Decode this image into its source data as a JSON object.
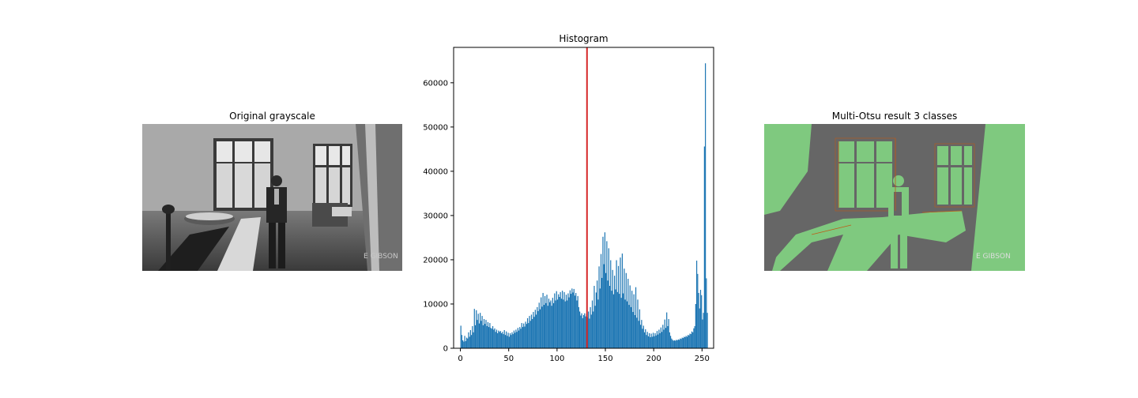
{
  "panels": {
    "left": {
      "title": "Original grayscale",
      "watermark": "E GIBSON"
    },
    "middle": {
      "title": "Histogram"
    },
    "right": {
      "title": "Multi-Otsu result 3 classes",
      "watermark": "E GIBSON"
    }
  },
  "chart_data": [
    {
      "type": "image",
      "title": "Original grayscale",
      "colormap": "gray"
    },
    {
      "type": "bar",
      "title": "Histogram",
      "xlabel": "",
      "ylabel": "",
      "xlim": [
        -7,
        262
      ],
      "ylim": [
        0,
        68000
      ],
      "xticks": [
        0,
        50,
        100,
        150,
        200,
        250
      ],
      "yticks": [
        0,
        10000,
        20000,
        30000,
        40000,
        50000,
        60000
      ],
      "bar_color": "#1f77b4",
      "threshold_lines": [
        {
          "x": 131,
          "color": "#d62728"
        }
      ],
      "bins": [
        [
          0,
          5100
        ],
        [
          1,
          3000
        ],
        [
          2,
          1800
        ],
        [
          3,
          1500
        ],
        [
          4,
          2800
        ],
        [
          5,
          1600
        ],
        [
          6,
          2400
        ],
        [
          7,
          2200
        ],
        [
          8,
          3600
        ],
        [
          9,
          2600
        ],
        [
          10,
          4100
        ],
        [
          11,
          3000
        ],
        [
          12,
          5000
        ],
        [
          13,
          3600
        ],
        [
          14,
          8900
        ],
        [
          15,
          5200
        ],
        [
          16,
          8600
        ],
        [
          17,
          6400
        ],
        [
          18,
          7800
        ],
        [
          19,
          5600
        ],
        [
          20,
          8000
        ],
        [
          21,
          6200
        ],
        [
          22,
          7300
        ],
        [
          23,
          5200
        ],
        [
          24,
          6600
        ],
        [
          25,
          5500
        ],
        [
          26,
          6400
        ],
        [
          27,
          5000
        ],
        [
          28,
          5900
        ],
        [
          29,
          4800
        ],
        [
          30,
          5700
        ],
        [
          31,
          4600
        ],
        [
          32,
          4400
        ],
        [
          33,
          5000
        ],
        [
          34,
          4200
        ],
        [
          35,
          4500
        ],
        [
          36,
          3700
        ],
        [
          37,
          4200
        ],
        [
          38,
          3400
        ],
        [
          39,
          4000
        ],
        [
          40,
          3700
        ],
        [
          41,
          3900
        ],
        [
          42,
          3400
        ],
        [
          43,
          3700
        ],
        [
          44,
          3200
        ],
        [
          45,
          4100
        ],
        [
          46,
          3000
        ],
        [
          47,
          3800
        ],
        [
          48,
          2800
        ],
        [
          49,
          3500
        ],
        [
          50,
          2600
        ],
        [
          51,
          3400
        ],
        [
          52,
          3000
        ],
        [
          53,
          3600
        ],
        [
          54,
          3200
        ],
        [
          55,
          4000
        ],
        [
          56,
          3500
        ],
        [
          57,
          4200
        ],
        [
          58,
          3700
        ],
        [
          59,
          4600
        ],
        [
          60,
          4000
        ],
        [
          61,
          4800
        ],
        [
          62,
          4400
        ],
        [
          63,
          5700
        ],
        [
          64,
          4800
        ],
        [
          65,
          5600
        ],
        [
          66,
          4900
        ],
        [
          67,
          6000
        ],
        [
          68,
          5500
        ],
        [
          69,
          6800
        ],
        [
          70,
          5700
        ],
        [
          71,
          7300
        ],
        [
          72,
          6200
        ],
        [
          73,
          7600
        ],
        [
          74,
          6600
        ],
        [
          75,
          8200
        ],
        [
          76,
          7100
        ],
        [
          77,
          8700
        ],
        [
          78,
          7600
        ],
        [
          79,
          9300
        ],
        [
          80,
          8400
        ],
        [
          81,
          10300
        ],
        [
          82,
          8800
        ],
        [
          83,
          11500
        ],
        [
          84,
          9400
        ],
        [
          85,
          12500
        ],
        [
          86,
          9800
        ],
        [
          87,
          11800
        ],
        [
          88,
          10200
        ],
        [
          89,
          12100
        ],
        [
          90,
          9600
        ],
        [
          91,
          11200
        ],
        [
          92,
          10400
        ],
        [
          93,
          10800
        ],
        [
          94,
          9600
        ],
        [
          95,
          11400
        ],
        [
          96,
          10200
        ],
        [
          97,
          12400
        ],
        [
          98,
          10800
        ],
        [
          99,
          12900
        ],
        [
          100,
          11000
        ],
        [
          101,
          12200
        ],
        [
          102,
          11600
        ],
        [
          103,
          12700
        ],
        [
          104,
          11200
        ],
        [
          105,
          13000
        ],
        [
          106,
          11000
        ],
        [
          107,
          12700
        ],
        [
          108,
          10600
        ],
        [
          109,
          12100
        ],
        [
          110,
          10800
        ],
        [
          111,
          12400
        ],
        [
          112,
          11500
        ],
        [
          113,
          13100
        ],
        [
          114,
          12300
        ],
        [
          115,
          13500
        ],
        [
          116,
          12600
        ],
        [
          117,
          13400
        ],
        [
          118,
          11900
        ],
        [
          119,
          12500
        ],
        [
          120,
          10800
        ],
        [
          121,
          11800
        ],
        [
          122,
          9300
        ],
        [
          123,
          8300
        ],
        [
          124,
          7400
        ],
        [
          125,
          7900
        ],
        [
          126,
          6800
        ],
        [
          127,
          7500
        ],
        [
          128,
          7900
        ],
        [
          129,
          7200
        ],
        [
          130,
          7800
        ],
        [
          131,
          7000
        ],
        [
          132,
          8300
        ],
        [
          133,
          6700
        ],
        [
          134,
          9300
        ],
        [
          135,
          7600
        ],
        [
          136,
          10800
        ],
        [
          137,
          8300
        ],
        [
          138,
          14100
        ],
        [
          139,
          9600
        ],
        [
          140,
          12600
        ],
        [
          141,
          15300
        ],
        [
          142,
          11000
        ],
        [
          143,
          18500
        ],
        [
          144,
          13500
        ],
        [
          145,
          21300
        ],
        [
          146,
          15900
        ],
        [
          147,
          25200
        ],
        [
          148,
          19000
        ],
        [
          149,
          26200
        ],
        [
          150,
          17000
        ],
        [
          151,
          24200
        ],
        [
          152,
          15300
        ],
        [
          153,
          22600
        ],
        [
          154,
          14100
        ],
        [
          155,
          19900
        ],
        [
          156,
          13000
        ],
        [
          157,
          17700
        ],
        [
          158,
          12200
        ],
        [
          159,
          16400
        ],
        [
          160,
          13300
        ],
        [
          161,
          19900
        ],
        [
          162,
          12700
        ],
        [
          163,
          18600
        ],
        [
          164,
          12300
        ],
        [
          165,
          20500
        ],
        [
          166,
          11400
        ],
        [
          167,
          21400
        ],
        [
          168,
          12400
        ],
        [
          169,
          18000
        ],
        [
          170,
          11000
        ],
        [
          171,
          17000
        ],
        [
          172,
          10600
        ],
        [
          173,
          15700
        ],
        [
          174,
          9800
        ],
        [
          175,
          14200
        ],
        [
          176,
          9300
        ],
        [
          177,
          13000
        ],
        [
          178,
          8200
        ],
        [
          179,
          12200
        ],
        [
          180,
          7500
        ],
        [
          181,
          13800
        ],
        [
          182,
          6900
        ],
        [
          183,
          11000
        ],
        [
          184,
          6200
        ],
        [
          185,
          8800
        ],
        [
          186,
          5300
        ],
        [
          187,
          6400
        ],
        [
          188,
          4400
        ],
        [
          189,
          5100
        ],
        [
          190,
          3600
        ],
        [
          191,
          4300
        ],
        [
          192,
          3000
        ],
        [
          193,
          3700
        ],
        [
          194,
          2700
        ],
        [
          195,
          3400
        ],
        [
          196,
          2500
        ],
        [
          197,
          3300
        ],
        [
          198,
          2600
        ],
        [
          199,
          3500
        ],
        [
          200,
          2700
        ],
        [
          201,
          3400
        ],
        [
          202,
          2900
        ],
        [
          203,
          3900
        ],
        [
          204,
          3100
        ],
        [
          205,
          4200
        ],
        [
          206,
          3400
        ],
        [
          207,
          4700
        ],
        [
          208,
          3700
        ],
        [
          209,
          5300
        ],
        [
          210,
          4200
        ],
        [
          211,
          6500
        ],
        [
          212,
          4600
        ],
        [
          213,
          8100
        ],
        [
          214,
          5000
        ],
        [
          215,
          6600
        ],
        [
          216,
          3600
        ],
        [
          217,
          2800
        ],
        [
          218,
          2200
        ],
        [
          219,
          1900
        ],
        [
          220,
          1700
        ],
        [
          221,
          1800
        ],
        [
          222,
          1700
        ],
        [
          223,
          1900
        ],
        [
          224,
          1800
        ],
        [
          225,
          2000
        ],
        [
          226,
          1900
        ],
        [
          227,
          2200
        ],
        [
          228,
          2100
        ],
        [
          229,
          2400
        ],
        [
          230,
          2300
        ],
        [
          231,
          2600
        ],
        [
          232,
          2500
        ],
        [
          233,
          2800
        ],
        [
          234,
          2600
        ],
        [
          235,
          3000
        ],
        [
          236,
          2900
        ],
        [
          237,
          3300
        ],
        [
          238,
          3200
        ],
        [
          239,
          3800
        ],
        [
          240,
          3600
        ],
        [
          241,
          4500
        ],
        [
          242,
          5000
        ],
        [
          243,
          10000
        ],
        [
          244,
          19800
        ],
        [
          245,
          16800
        ],
        [
          246,
          12500
        ],
        [
          247,
          9000
        ],
        [
          248,
          13200
        ],
        [
          249,
          12000
        ],
        [
          250,
          6500
        ],
        [
          251,
          8000
        ],
        [
          252,
          45600
        ],
        [
          253,
          64400
        ],
        [
          254,
          15800
        ],
        [
          255,
          8000
        ]
      ]
    },
    {
      "type": "image",
      "title": "Multi-Otsu result 3 classes",
      "colormap": "Accent",
      "classes": 3,
      "class_colors": [
        "#7fc97f",
        "#bf5b17",
        "#666666"
      ]
    }
  ]
}
